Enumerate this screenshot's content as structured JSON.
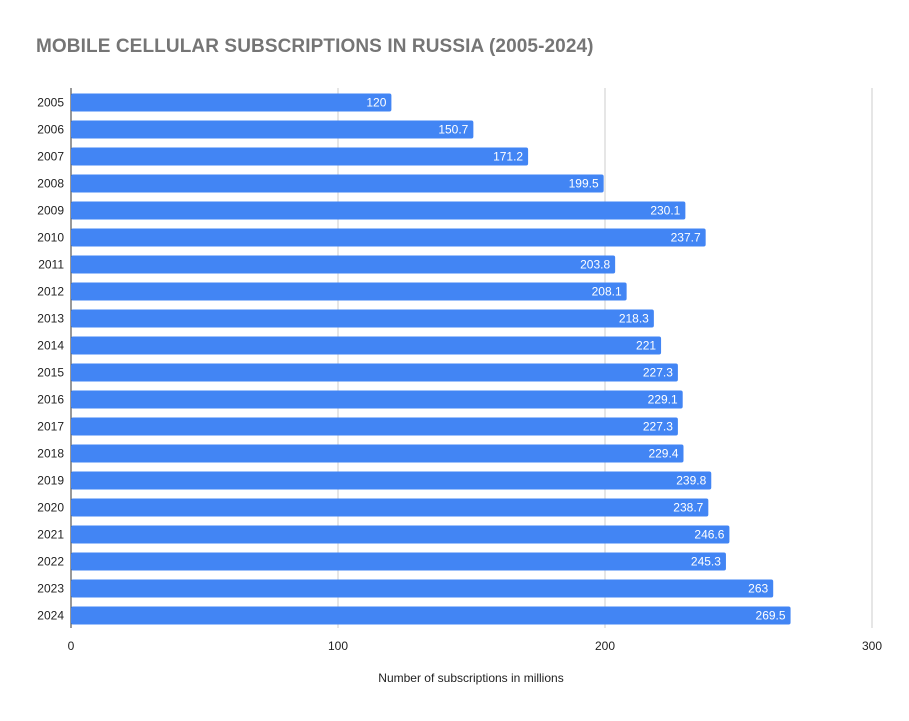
{
  "chart_data": {
    "type": "bar",
    "orientation": "horizontal",
    "title": "MOBILE CELLULAR SUBSCRIPTIONS IN RUSSIA (2005-2024)",
    "xlabel": "Number of subscriptions in millions",
    "ylabel": "",
    "xlim": [
      0,
      300
    ],
    "xticks": [
      0,
      100,
      200,
      300
    ],
    "grid": true,
    "legend": "none",
    "bar_color": "#4285f4",
    "categories": [
      "2005",
      "2006",
      "2007",
      "2008",
      "2009",
      "2010",
      "2011",
      "2012",
      "2013",
      "2014",
      "2015",
      "2016",
      "2017",
      "2018",
      "2019",
      "2020",
      "2021",
      "2022",
      "2023",
      "2024"
    ],
    "values": [
      120,
      150.7,
      171.2,
      199.5,
      230.1,
      237.7,
      203.8,
      208.1,
      218.3,
      221,
      227.3,
      229.1,
      227.3,
      229.4,
      239.8,
      238.7,
      246.6,
      245.3,
      263,
      269.5
    ],
    "data_labels": [
      "120",
      "150.7",
      "171.2",
      "199.5",
      "230.1",
      "237.7",
      "203.8",
      "208.1",
      "218.3",
      "221",
      "227.3",
      "229.1",
      "227.3",
      "229.4",
      "239.8",
      "238.7",
      "246.6",
      "245.3",
      "263",
      "269.5"
    ]
  }
}
